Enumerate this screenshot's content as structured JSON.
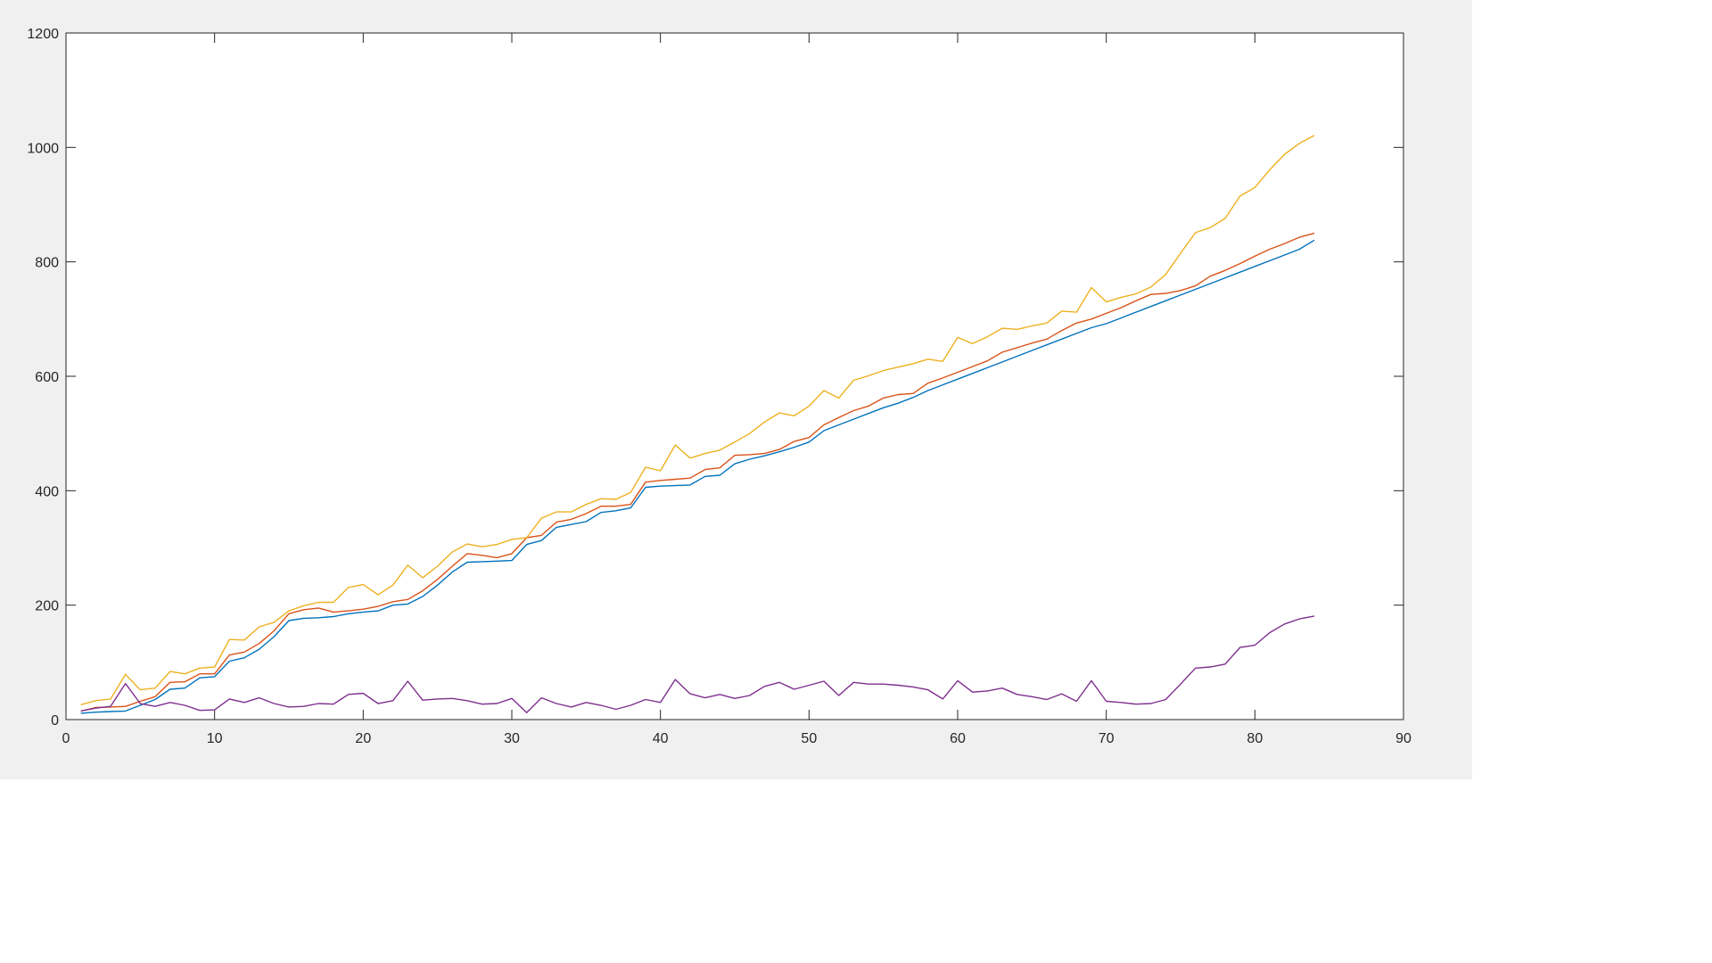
{
  "chart_data": {
    "type": "line",
    "title": "",
    "xlabel": "",
    "ylabel": "",
    "xlim": [
      0,
      90
    ],
    "ylim": [
      0,
      1200
    ],
    "xticks": [
      0,
      10,
      20,
      30,
      40,
      50,
      60,
      70,
      80,
      90
    ],
    "yticks": [
      0,
      200,
      400,
      600,
      800,
      1000,
      1200
    ],
    "xtick_labels": [
      "0",
      "10",
      "20",
      "30",
      "40",
      "50",
      "60",
      "70",
      "80",
      "90"
    ],
    "ytick_labels": [
      "0",
      "200",
      "400",
      "600",
      "800",
      "1000",
      "1200"
    ],
    "grid": false,
    "legend": "none",
    "x": [
      1,
      2,
      3,
      4,
      5,
      6,
      7,
      8,
      9,
      10,
      11,
      12,
      13,
      14,
      15,
      16,
      17,
      18,
      19,
      20,
      21,
      22,
      23,
      24,
      25,
      26,
      27,
      28,
      29,
      30,
      31,
      32,
      33,
      34,
      35,
      36,
      37,
      38,
      39,
      40,
      41,
      42,
      43,
      44,
      45,
      46,
      47,
      48,
      49,
      50,
      51,
      52,
      53,
      54,
      55,
      56,
      57,
      58,
      59,
      60,
      61,
      62,
      63,
      64,
      65,
      66,
      67,
      68,
      69,
      70,
      71,
      72,
      73,
      74,
      75,
      76,
      77,
      78,
      79,
      80,
      81,
      82,
      83,
      84
    ],
    "series": [
      {
        "color": "#0072BD",
        "values": [
          11,
          13,
          14,
          15,
          25,
          35,
          53,
          55,
          73,
          75,
          102,
          108,
          123,
          145,
          173,
          177,
          178,
          180,
          185,
          188,
          190,
          200,
          202,
          215,
          235,
          258,
          275,
          276,
          277,
          278,
          306,
          313,
          336,
          341,
          346,
          362,
          365,
          370,
          406,
          408,
          409,
          410,
          425,
          427,
          447,
          455,
          461,
          468,
          476,
          485,
          505,
          515,
          525,
          535,
          545,
          553,
          563,
          575,
          585,
          595,
          605,
          615,
          625,
          635,
          645,
          655,
          665,
          675,
          685,
          692,
          702,
          712,
          722,
          732,
          742,
          752,
          762,
          772,
          782,
          792,
          802,
          812,
          822,
          838
        ]
      },
      {
        "color": "#D95319",
        "values": [
          15,
          21,
          22,
          23,
          32,
          40,
          65,
          66,
          80,
          80,
          113,
          118,
          133,
          155,
          185,
          192,
          195,
          188,
          190,
          193,
          198,
          206,
          210,
          225,
          245,
          268,
          290,
          287,
          283,
          290,
          318,
          322,
          345,
          350,
          360,
          373,
          373,
          376,
          415,
          418,
          420,
          422,
          437,
          440,
          462,
          463,
          465,
          472,
          486,
          493,
          515,
          528,
          540,
          548,
          562,
          568,
          570,
          588,
          597,
          607,
          617,
          627,
          642,
          650,
          658,
          665,
          680,
          693,
          700,
          710,
          720,
          732,
          743,
          745,
          750,
          758,
          775,
          785,
          797,
          810,
          822,
          832,
          843,
          850
        ]
      },
      {
        "color": "#EDB120",
        "values": [
          26,
          33,
          36,
          79,
          52,
          55,
          84,
          80,
          90,
          92,
          140,
          139,
          162,
          170,
          190,
          199,
          205,
          205,
          231,
          236,
          218,
          235,
          270,
          248,
          268,
          293,
          307,
          302,
          306,
          315,
          318,
          352,
          363,
          363,
          376,
          386,
          385,
          397,
          441,
          435,
          480,
          457,
          465,
          471,
          485,
          500,
          520,
          536,
          531,
          548,
          575,
          562,
          593,
          601,
          610,
          616,
          622,
          630,
          626,
          668,
          657,
          669,
          684,
          682,
          688,
          693,
          714,
          712,
          755,
          730,
          738,
          744,
          756,
          778,
          815,
          851,
          860,
          876,
          915,
          930,
          961,
          988,
          1007,
          1021
        ]
      },
      {
        "color": "#7E2F8E",
        "values": [
          15,
          20,
          23,
          63,
          28,
          23,
          30,
          25,
          16,
          17,
          36,
          30,
          38,
          28,
          22,
          23,
          28,
          27,
          44,
          46,
          28,
          33,
          67,
          34,
          36,
          37,
          33,
          27,
          28,
          37,
          12,
          38,
          28,
          22,
          30,
          25,
          18,
          25,
          35,
          30,
          70,
          45,
          38,
          44,
          37,
          42,
          58,
          65,
          53,
          60,
          67,
          42,
          65,
          62,
          62,
          60,
          57,
          52,
          36,
          68,
          48,
          50,
          55,
          44,
          40,
          35,
          45,
          32,
          68,
          32,
          30,
          27,
          28,
          35,
          62,
          90,
          92,
          97,
          126,
          130,
          152,
          167,
          176,
          181
        ]
      }
    ]
  }
}
